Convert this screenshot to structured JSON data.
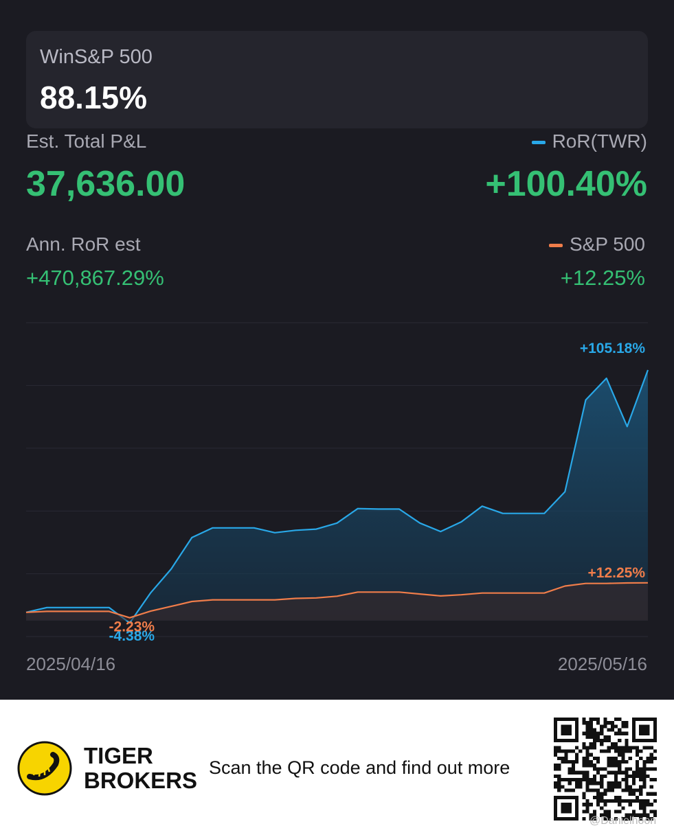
{
  "win_box": {
    "label": "WinS&P 500",
    "value": "88.15%"
  },
  "pnl": {
    "label": "Est. Total P&L",
    "value": "37,636.00"
  },
  "ror": {
    "label": "RoR(TWR)",
    "value": "+100.40%",
    "color": "#29a8e8"
  },
  "ann": {
    "label": "Ann. RoR est",
    "value": "+470,867.29%"
  },
  "sp": {
    "label": "S&P 500",
    "value": "+12.25%",
    "color": "#f07d4a"
  },
  "chart_data": {
    "type": "area",
    "x_range": [
      "2025/04/16",
      "2025/05/16"
    ],
    "xtick_labels": [
      "2025/04/16",
      "2025/05/16"
    ],
    "ylim": [
      -10,
      120
    ],
    "grid": true,
    "series": [
      {
        "name": "RoR(TWR)",
        "color": "#29a8e8",
        "values": [
          0,
          2,
          2,
          2,
          2,
          -4.38,
          8,
          18,
          31,
          35,
          35,
          35,
          33,
          34,
          34.5,
          37,
          43,
          42.8,
          42.8,
          37,
          33.5,
          37.5,
          44,
          41,
          41,
          41,
          50,
          88,
          97,
          77,
          100.4
        ],
        "annotations": {
          "max": "+105.18%",
          "min": "-4.38%"
        }
      },
      {
        "name": "S&P 500",
        "color": "#f07d4a",
        "values": [
          0,
          0.4,
          0.4,
          0.4,
          0.4,
          -2.23,
          0.5,
          2.5,
          4.5,
          5.2,
          5.2,
          5.2,
          5.2,
          5.8,
          6.0,
          6.7,
          8.4,
          8.4,
          8.4,
          7.6,
          6.8,
          7.3,
          8.0,
          8.0,
          8.0,
          8.0,
          10.9,
          12.0,
          12.0,
          12.2,
          12.25
        ],
        "annotations": {
          "max": "+12.25%",
          "min": "-2.23%"
        }
      }
    ]
  },
  "footer": {
    "brand_line1": "TIGER",
    "brand_line2": "BROKERS",
    "scan_text": "Scan the QR code and find out more",
    "watermark": "@Danielhoon"
  }
}
